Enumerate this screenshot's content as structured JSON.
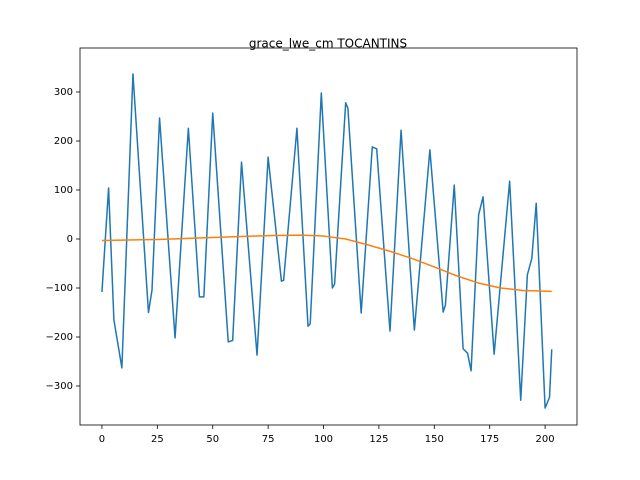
{
  "chart_data": {
    "type": "line",
    "title": "grace_lwe_cm TOCANTINS",
    "xlim": [
      -9.9,
      214.4
    ],
    "ylim": [
      -379.6,
      389.8
    ],
    "xticks": [
      0,
      25,
      50,
      75,
      100,
      125,
      150,
      175,
      200
    ],
    "yticks": [
      {
        "value": -300,
        "label": "−300"
      },
      {
        "value": -200,
        "label": "−200"
      },
      {
        "value": -100,
        "label": "−100"
      },
      0,
      100,
      200,
      300
    ],
    "series": [
      {
        "color": "#1f77b4",
        "x": [
          0,
          3,
          5.4,
          9,
          14,
          21,
          22.6,
          26,
          33,
          39,
          44,
          46,
          50,
          57,
          59,
          63,
          70,
          75,
          81,
          82,
          88,
          93,
          94,
          99,
          104,
          105,
          110,
          111,
          117,
          122,
          124,
          130,
          135,
          141,
          148,
          154,
          155,
          159,
          163,
          165,
          166.6,
          170,
          172,
          177,
          184,
          189,
          192,
          194,
          196,
          200,
          202,
          203
        ],
        "values": [
          -108,
          104,
          -165,
          -263,
          337,
          -150,
          -104,
          247,
          -202,
          226,
          -118,
          -118,
          257,
          -210,
          -207,
          157,
          -237,
          167,
          -86,
          -84,
          226,
          -178,
          -173,
          298,
          -100,
          -92,
          278,
          267,
          -151,
          188,
          184,
          -188,
          222,
          -186,
          182,
          -149,
          -135,
          110,
          -224,
          -233,
          -269,
          49,
          86,
          -235,
          118,
          -329,
          -73,
          -40,
          73,
          -345,
          -323,
          -225
        ]
      },
      {
        "color": "#ff7f0e",
        "x": [
          0,
          25,
          50,
          75,
          90,
          100,
          110,
          120,
          130,
          140,
          150,
          160,
          170,
          180,
          190,
          203
        ],
        "values": [
          -3,
          -1,
          3,
          7,
          8,
          6,
          0,
          -12,
          -25,
          -40,
          -57,
          -75,
          -90,
          -100,
          -105,
          -107
        ]
      }
    ]
  }
}
